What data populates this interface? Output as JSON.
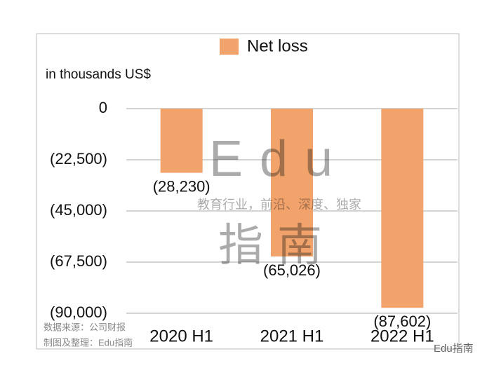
{
  "chart_data": {
    "type": "bar",
    "legend_label": "Net loss",
    "unit_label": "in thousands US$",
    "categories": [
      "2020 H1",
      "2021 H1",
      "2022 H1"
    ],
    "series": [
      {
        "name": "Net loss",
        "color": "#f2a26b",
        "values": [
          -28230,
          -65026,
          -87602
        ],
        "value_labels": [
          "(28,230)",
          "(65,026)",
          "(87,602)"
        ]
      }
    ],
    "ylim": [
      -90000,
      0
    ],
    "yticks": [
      0,
      {
        "value": -22500,
        "label": "(22,500)"
      },
      {
        "value": -45000,
        "label": "(45,000)"
      },
      {
        "value": -67500,
        "label": "(67,500)"
      },
      {
        "value": -90000,
        "label": "(90,000)"
      }
    ],
    "grid": true,
    "watermark": {
      "brand": "Edu",
      "brand_cn": "指南",
      "slogan": "教育行业，前沿、深度、独家"
    },
    "source": "数据来源：公司财报",
    "credit": "制图及整理：Edu指南",
    "footer_brand": "Edu指南"
  }
}
